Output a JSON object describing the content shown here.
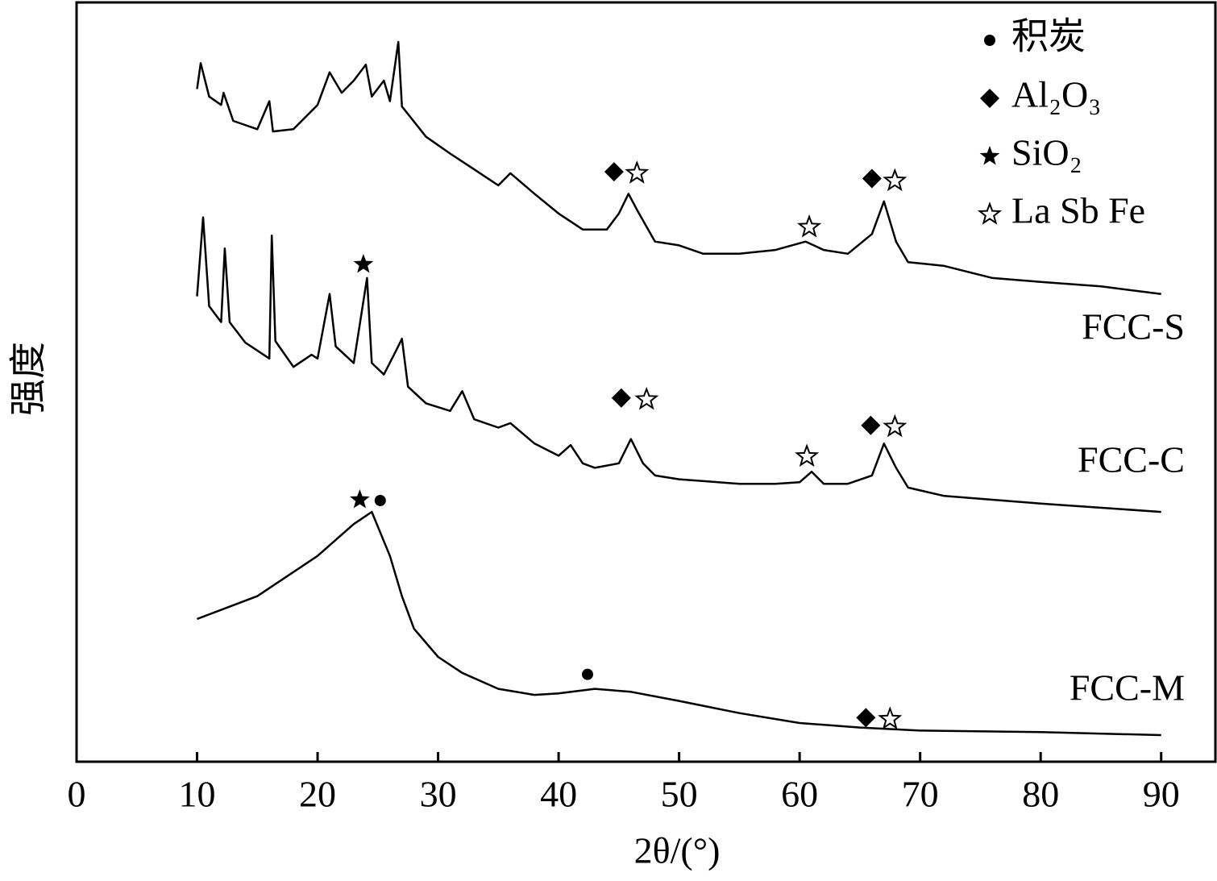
{
  "chart_data": {
    "type": "line",
    "xlabel": "2θ/(°)",
    "ylabel": "强度",
    "xlim": [
      0,
      94.5
    ],
    "xticks": [
      0,
      10,
      20,
      30,
      40,
      50,
      60,
      70,
      80,
      90
    ],
    "ylim": [
      0,
      100
    ],
    "series": [
      {
        "name": "FCC-S",
        "color": "#000000",
        "x": [
          10,
          10.3,
          11,
          12,
          12.2,
          13,
          15,
          16,
          16.3,
          18,
          20,
          21,
          22,
          23,
          24,
          24.5,
          25.5,
          26,
          26.7,
          27,
          29,
          31,
          33,
          35,
          36,
          38,
          40,
          42,
          44,
          45,
          45.8,
          46.5,
          48,
          50,
          52,
          55,
          58,
          60.5,
          62,
          64,
          66,
          67,
          68,
          69,
          72,
          76,
          80,
          85,
          90
        ],
        "values": [
          88.6,
          92.0,
          87.6,
          86.5,
          88.1,
          84.4,
          83.3,
          87.0,
          83.0,
          83.3,
          86.5,
          90.8,
          88.1,
          89.7,
          91.8,
          87.6,
          89.7,
          87.0,
          94.8,
          86.3,
          82.3,
          80.1,
          78.0,
          75.9,
          77.5,
          74.8,
          72.2,
          70.1,
          70.1,
          72.2,
          74.8,
          72.7,
          68.5,
          68.0,
          66.9,
          66.9,
          67.4,
          68.5,
          67.4,
          66.9,
          69.5,
          73.8,
          68.5,
          65.8,
          65.3,
          63.7,
          63.2,
          62.6,
          61.6
        ]
      },
      {
        "name": "FCC-C",
        "color": "#000000",
        "x": [
          10,
          10.5,
          11,
          12,
          12.3,
          12.7,
          14,
          16,
          16.2,
          16.5,
          18,
          19.5,
          20,
          21,
          21.5,
          23,
          24.1,
          24.5,
          25.5,
          26.5,
          27,
          27.5,
          29,
          31,
          32,
          33,
          35,
          36,
          38,
          40,
          41,
          42,
          43,
          45,
          46,
          47,
          48,
          50,
          55,
          58,
          60,
          61,
          62,
          64,
          66,
          67,
          68,
          69,
          72,
          80,
          90
        ],
        "values": [
          61.3,
          71.7,
          60.0,
          57.9,
          67.6,
          57.9,
          55.2,
          53.1,
          69.3,
          55.4,
          52.0,
          53.6,
          53.1,
          61.6,
          54.7,
          52.5,
          63.7,
          52.5,
          51.0,
          54.1,
          55.7,
          49.4,
          47.2,
          46.2,
          48.8,
          45.1,
          44.0,
          44.6,
          41.9,
          40.3,
          41.7,
          39.3,
          38.7,
          39.3,
          42.5,
          39.3,
          37.7,
          37.2,
          36.6,
          36.6,
          36.8,
          38.2,
          36.6,
          36.6,
          37.7,
          41.9,
          38.7,
          36.1,
          35.0,
          34.0,
          32.9
        ]
      },
      {
        "name": "FCC-M",
        "color": "#000000",
        "x": [
          10,
          15,
          20,
          23,
          24.5,
          26,
          27,
          28,
          30,
          32,
          35,
          38,
          40,
          43,
          46,
          50,
          55,
          60,
          65,
          70,
          80,
          90
        ],
        "values": [
          18.8,
          21.8,
          27.1,
          31.3,
          32.9,
          27.1,
          21.8,
          17.5,
          13.8,
          11.7,
          9.6,
          8.8,
          9.0,
          9.6,
          9.2,
          8.0,
          6.4,
          5.1,
          4.5,
          4.1,
          3.9,
          3.5
        ]
      }
    ],
    "legend": [
      {
        "symbol": "circle",
        "label": "积炭"
      },
      {
        "symbol": "diamond",
        "label": "Al₂O₃"
      },
      {
        "symbol": "star",
        "label": "SiO₂"
      },
      {
        "symbol": "open-star",
        "label": "La Sb Fe"
      }
    ],
    "annotations": [
      {
        "symbol": "diamond",
        "x": 44.6,
        "y": 77.7
      },
      {
        "symbol": "open-star",
        "x": 46.5,
        "y": 77.5
      },
      {
        "symbol": "diamond",
        "x": 66.0,
        "y": 76.8
      },
      {
        "symbol": "open-star",
        "x": 67.9,
        "y": 76.5
      },
      {
        "symbol": "open-star",
        "x": 60.8,
        "y": 70.4
      },
      {
        "symbol": "star",
        "x": 23.8,
        "y": 65.5
      },
      {
        "symbol": "diamond",
        "x": 45.2,
        "y": 47.9
      },
      {
        "symbol": "open-star",
        "x": 47.3,
        "y": 47.7
      },
      {
        "symbol": "diamond",
        "x": 65.9,
        "y": 44.3
      },
      {
        "symbol": "open-star",
        "x": 67.9,
        "y": 44.1
      },
      {
        "symbol": "open-star",
        "x": 60.6,
        "y": 40.2
      },
      {
        "symbol": "star",
        "x": 23.5,
        "y": 34.5
      },
      {
        "symbol": "circle",
        "x": 25.2,
        "y": 34.4
      },
      {
        "symbol": "circle",
        "x": 42.4,
        "y": 11.5
      },
      {
        "symbol": "diamond",
        "x": 65.5,
        "y": 5.8
      },
      {
        "symbol": "open-star",
        "x": 67.5,
        "y": 5.6
      }
    ]
  }
}
